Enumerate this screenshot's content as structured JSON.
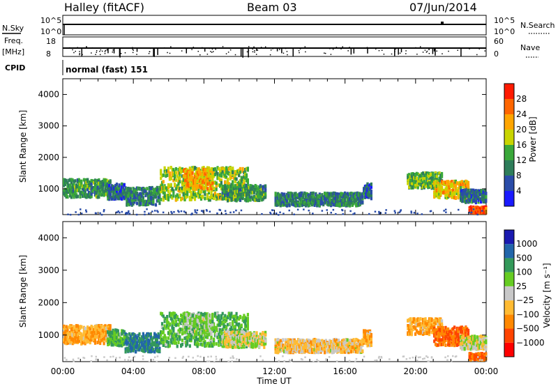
{
  "header": {
    "station": "Halley (fitACF)",
    "beam": "Beam 03",
    "date": "07/Jun/2014"
  },
  "nsky_panel": {
    "left_label": "N.Sky",
    "right_label": "N.Search",
    "left_ticks": [
      "10^5",
      "10^0"
    ],
    "right_ticks": [
      "10^5",
      "10^0"
    ]
  },
  "freq_panel": {
    "left_label_top": "Freq.",
    "left_label_bottom": "[MHz]",
    "right_label": "Nave",
    "left_ticks": [
      "18",
      "8"
    ],
    "right_ticks": [
      "60",
      "0"
    ]
  },
  "cpid": {
    "label": "CPID",
    "value": "normal (fast) 151"
  },
  "colors": {
    "power_scale": [
      "#1a1aff",
      "#2a4ca8",
      "#2e7d5a",
      "#3aa83a",
      "#c8d400",
      "#ffa500",
      "#ff6600",
      "#ff1a00"
    ],
    "velocity_scale": [
      "#ff0000",
      "#ff4400",
      "#ff8800",
      "#ffbb33",
      "#c8c8c8",
      "#66cc22",
      "#33995a",
      "#2266aa",
      "#1a1ab0"
    ]
  },
  "chart_data": [
    {
      "type": "heatmap",
      "name": "power",
      "xlabel": "Time UT",
      "ylabel": "Slant Range [km]",
      "xlim": [
        0,
        24
      ],
      "ylim": [
        180,
        4500
      ],
      "y_ticks": [
        "1000",
        "2000",
        "3000",
        "4000"
      ],
      "x_ticks": [
        "00:00",
        "04:00",
        "08:00",
        "12:00",
        "16:00",
        "20:00",
        "00:00"
      ],
      "colorbar": {
        "label": "Power [dB]",
        "ticks": [
          "4",
          "8",
          "12",
          "16",
          "20",
          "24",
          "28"
        ]
      },
      "regions": [
        {
          "t0": 0.0,
          "t1": 2.7,
          "r_center": 1000,
          "r_width": 350,
          "level": 12
        },
        {
          "t0": 2.5,
          "t1": 3.5,
          "r_center": 900,
          "r_width": 300,
          "level": 8
        },
        {
          "t0": 3.5,
          "t1": 5.5,
          "r_center": 750,
          "r_width": 350,
          "level": 10
        },
        {
          "t0": 5.5,
          "t1": 10.5,
          "r_center": 1150,
          "r_width": 650,
          "level": 16
        },
        {
          "t0": 6.8,
          "t1": 8.5,
          "r_center": 1300,
          "r_width": 400,
          "level": 22
        },
        {
          "t0": 9.0,
          "t1": 11.5,
          "r_center": 850,
          "r_width": 300,
          "level": 12
        },
        {
          "t0": 12.0,
          "t1": 17.0,
          "r_center": 650,
          "r_width": 250,
          "level": 10
        },
        {
          "t0": 17.0,
          "t1": 17.5,
          "r_center": 900,
          "r_width": 300,
          "level": 8
        },
        {
          "t0": 19.5,
          "t1": 21.5,
          "r_center": 1250,
          "r_width": 300,
          "level": 14
        },
        {
          "t0": 21.0,
          "t1": 23.0,
          "r_center": 950,
          "r_width": 350,
          "level": 20
        },
        {
          "t0": 22.5,
          "t1": 24.0,
          "r_center": 750,
          "r_width": 250,
          "level": 8
        },
        {
          "t0": 23.0,
          "t1": 24.0,
          "r_center": 320,
          "r_width": 120,
          "level": 28
        }
      ]
    },
    {
      "type": "heatmap",
      "name": "velocity",
      "xlabel": "Time UT",
      "ylabel": "Slant Range [km]",
      "xlim": [
        0,
        24
      ],
      "ylim": [
        180,
        4500
      ],
      "y_ticks": [
        "1000",
        "2000",
        "3000",
        "4000"
      ],
      "x_ticks": [
        "00:00",
        "04:00",
        "08:00",
        "12:00",
        "16:00",
        "20:00",
        "00:00"
      ],
      "colorbar": {
        "label": "Velocity [m s⁻¹]",
        "ticks": [
          "1000",
          "500",
          "100",
          "25",
          "−25",
          "−100",
          "−500",
          "−1000"
        ]
      },
      "regions": [
        {
          "t0": 0.0,
          "t1": 2.7,
          "r_center": 1000,
          "r_width": 350,
          "level": -100
        },
        {
          "t0": 2.5,
          "t1": 3.5,
          "r_center": 900,
          "r_width": 300,
          "level": 100
        },
        {
          "t0": 3.5,
          "t1": 5.5,
          "r_center": 750,
          "r_width": 350,
          "level": 500
        },
        {
          "t0": 5.5,
          "t1": 10.5,
          "r_center": 1150,
          "r_width": 650,
          "level": 100
        },
        {
          "t0": 6.8,
          "t1": 8.5,
          "r_center": 1300,
          "r_width": 400,
          "level": 50
        },
        {
          "t0": 9.0,
          "t1": 11.5,
          "r_center": 850,
          "r_width": 300,
          "level": 0
        },
        {
          "t0": 12.0,
          "t1": 17.0,
          "r_center": 650,
          "r_width": 250,
          "level": -50
        },
        {
          "t0": 17.0,
          "t1": 17.5,
          "r_center": 900,
          "r_width": 300,
          "level": -100
        },
        {
          "t0": 19.5,
          "t1": 21.5,
          "r_center": 1250,
          "r_width": 300,
          "level": -100
        },
        {
          "t0": 21.0,
          "t1": 23.0,
          "r_center": 950,
          "r_width": 350,
          "level": -500
        },
        {
          "t0": 22.5,
          "t1": 24.0,
          "r_center": 750,
          "r_width": 250,
          "level": 0
        },
        {
          "t0": 23.0,
          "t1": 24.0,
          "r_center": 320,
          "r_width": 120,
          "level": -500
        }
      ]
    }
  ]
}
